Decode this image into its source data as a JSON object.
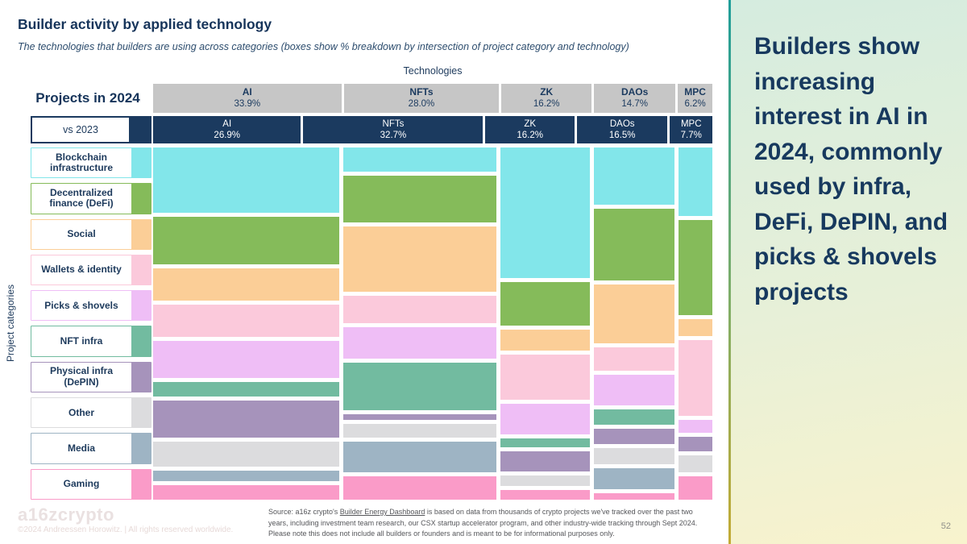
{
  "header": {
    "title": "Builder activity by applied technology",
    "subtitle": "The technologies that builders are using across categories (boxes show % breakdown by intersection of project category and technology)"
  },
  "axes": {
    "technologies_label": "Technologies",
    "projects_2024_label": "Projects in 2024",
    "vs_2023_label": "vs 2023",
    "categories_axis_label": "Project categories"
  },
  "panel": {
    "takeaway": "Builders show increasing interest in AI in 2024, commonly used by infra, DeFi, DePIN, and picks & shovels projects",
    "page_number": "52"
  },
  "footer": {
    "logo": "a16zcrypto",
    "copyright": "©2024 Andreessen Horowitz.  |  All rights reserved worldwide.",
    "source_prefix": "Source: a16z crypto's ",
    "source_link": "Builder Energy Dashboard",
    "source_suffix": " is based on data from thousands of crypto projects we've tracked over the past two years, including investment team research, our CSX startup accelerator program, and other industry-wide tracking through Sept 2024. Please note this does not include all builders or founders and is meant to be for informational purposes only."
  },
  "colors": {
    "navy": "#1b3a5f",
    "header_gray": "#c6c6c6",
    "panel_edge_top": "#1f9e9a",
    "panel_edge_bottom": "#c3ab35"
  },
  "chart_data": {
    "type": "heatmap",
    "subtype": "mosaic",
    "title": "Builder activity by applied technology",
    "values_estimated_from_box_heights": true,
    "categories": [
      {
        "name": "Blockchain infrastructure",
        "color": "#82e6ea"
      },
      {
        "name": "Decentralized finance (DeFi)",
        "color": "#85bb5a"
      },
      {
        "name": "Social",
        "color": "#fbce97"
      },
      {
        "name": "Wallets & identity",
        "color": "#fbc9db"
      },
      {
        "name": "Picks & shovels",
        "color": "#efbef6"
      },
      {
        "name": "NFT infra",
        "color": "#72bba0"
      },
      {
        "name": "Physical infra (DePIN)",
        "color": "#a693bb"
      },
      {
        "name": "Other",
        "color": "#dcdcde"
      },
      {
        "name": "Media",
        "color": "#9eb4c4"
      },
      {
        "name": "Gaming",
        "color": "#fa9bc8"
      }
    ],
    "series": [
      {
        "technology": "AI",
        "share_2024": 33.9,
        "label_2024": "33.9%",
        "share_2023": 26.9,
        "label_2023": "26.9%",
        "category_pcts": [
          20.6,
          15.1,
          10.2,
          10.2,
          11.7,
          4.7,
          11.7,
          7.8,
          3.4,
          4.6
        ]
      },
      {
        "technology": "NFTs",
        "share_2024": 28.0,
        "label_2024": "28.0%",
        "share_2023": 32.7,
        "label_2023": "32.7%",
        "category_pcts": [
          7.6,
          14.7,
          20.8,
          8.6,
          9.9,
          15.0,
          2.0,
          4.3,
          9.6,
          7.4
        ]
      },
      {
        "technology": "ZK",
        "share_2024": 16.2,
        "label_2024": "16.2%",
        "share_2023": 16.2,
        "label_2023": "16.2%",
        "category_pcts": [
          40.9,
          13.6,
          6.4,
          14.1,
          9.7,
          2.8,
          6.1,
          3.3,
          0,
          3.1
        ]
      },
      {
        "technology": "DAOs",
        "share_2024": 14.7,
        "label_2024": "14.7%",
        "share_2023": 16.5,
        "label_2023": "16.5%",
        "category_pcts": [
          18.2,
          22.6,
          18.7,
          7.4,
          9.7,
          4.9,
          4.6,
          5.1,
          6.7,
          2.1
        ]
      },
      {
        "technology": "MPC",
        "share_2024": 6.2,
        "label_2024": "6.2%",
        "share_2023": 7.7,
        "label_2023": "7.7%",
        "category_pcts": [
          21.0,
          29.4,
          5.2,
          23.4,
          3.9,
          0,
          4.7,
          5.2,
          0,
          7.1
        ]
      }
    ]
  }
}
